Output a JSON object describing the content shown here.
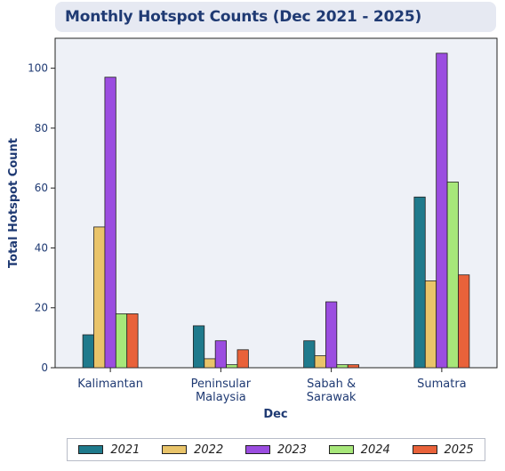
{
  "chart_data": {
    "type": "bar",
    "title": "Monthly Hotspot Counts (Dec 2021 - 2025)",
    "xlabel": "Dec",
    "ylabel": "Total Hotspot Count",
    "ylim": [
      0,
      110
    ],
    "yticks": [
      0,
      20,
      40,
      60,
      80,
      100
    ],
    "categories": [
      "Kalimantan",
      "Peninsular\nMalaysia",
      "Sabah &\nSarawak",
      "Sumatra"
    ],
    "series": [
      {
        "name": "2021",
        "color": "#1f7a8c",
        "values": [
          11,
          14,
          9,
          57
        ]
      },
      {
        "name": "2022",
        "color": "#e9c46a",
        "values": [
          47,
          3,
          4,
          29
        ]
      },
      {
        "name": "2023",
        "color": "#9b4de0",
        "values": [
          97,
          9,
          22,
          105
        ]
      },
      {
        "name": "2024",
        "color": "#a7e77a",
        "values": [
          18,
          1,
          1,
          62
        ]
      },
      {
        "name": "2025",
        "color": "#e9623a",
        "values": [
          18,
          6,
          1,
          31
        ]
      }
    ],
    "legend_position": "bottom",
    "grid": false
  }
}
